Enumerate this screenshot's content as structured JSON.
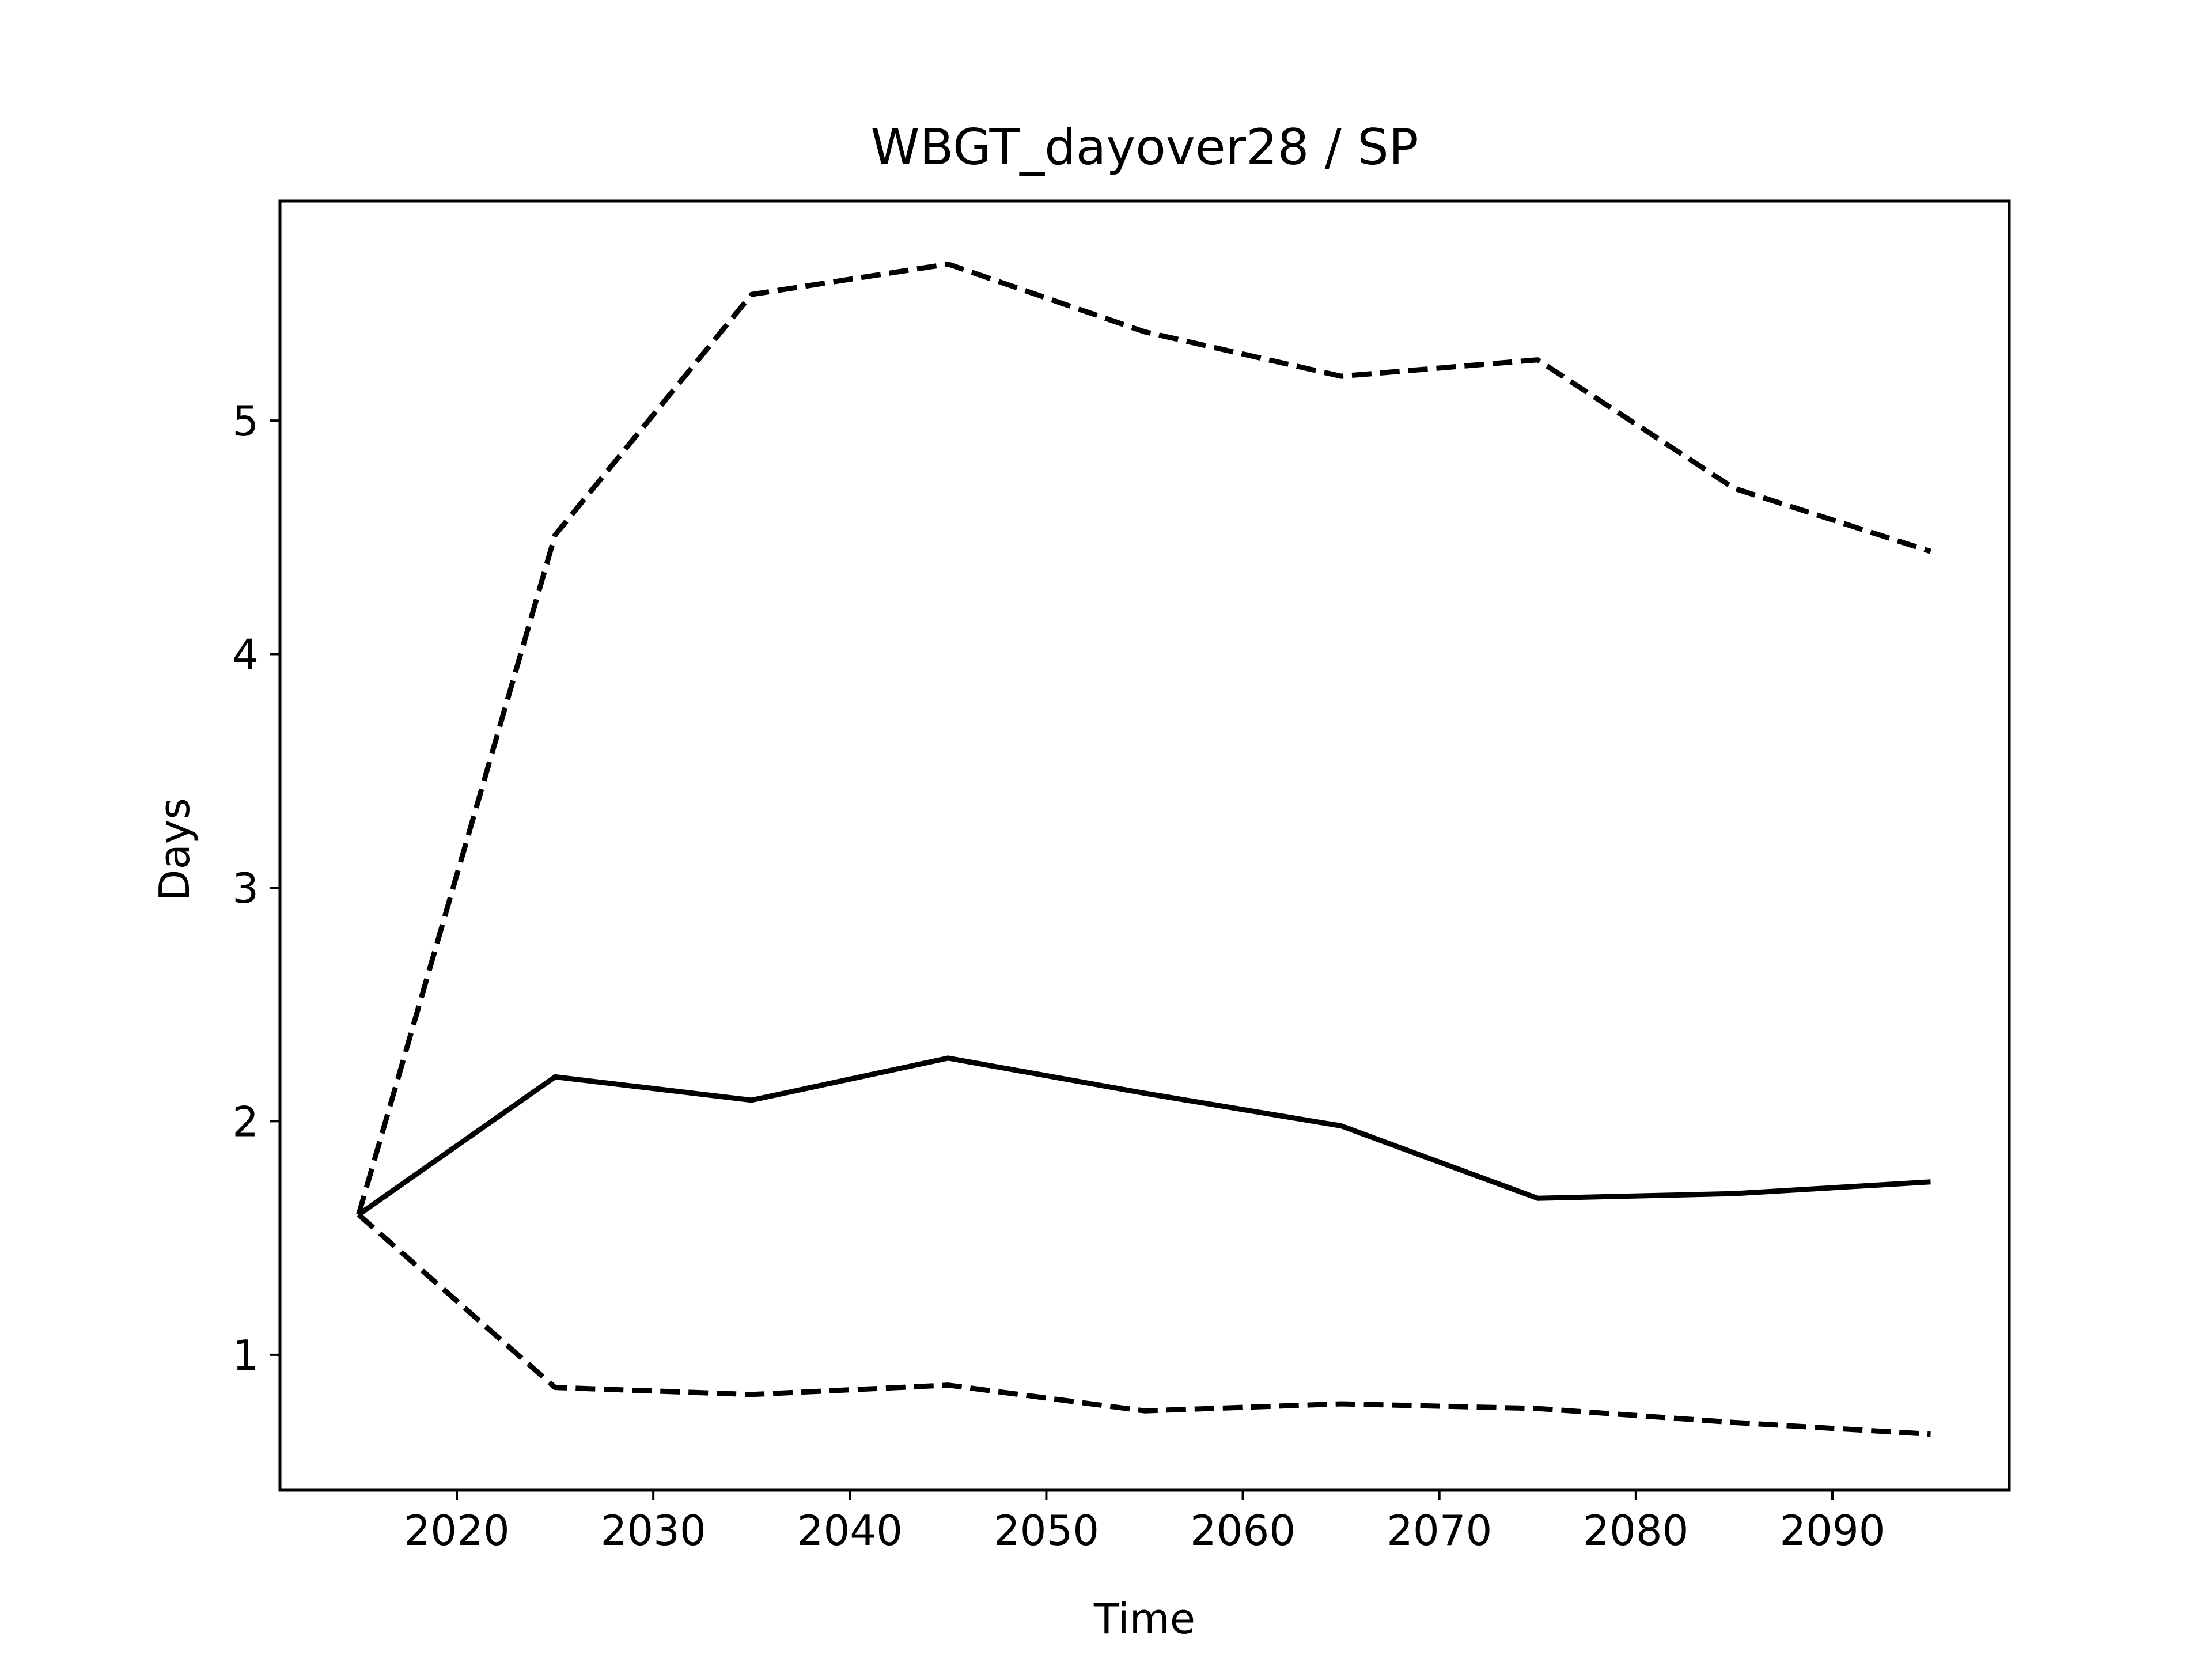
{
  "chart_data": {
    "type": "line",
    "title": "WBGT_dayover28 / SP",
    "xlabel": "Time",
    "ylabel": "Days",
    "xlim": [
      2011,
      2099
    ],
    "ylim": [
      0.42,
      5.94
    ],
    "xticks": [
      2020,
      2030,
      2040,
      2050,
      2060,
      2070,
      2080,
      2090
    ],
    "yticks": [
      1,
      2,
      3,
      4,
      5
    ],
    "grid": false,
    "legend": "none",
    "x": [
      2015,
      2025,
      2035,
      2045,
      2055,
      2065,
      2075,
      2085,
      2095
    ],
    "series": [
      {
        "style": "dashed",
        "color": "#000000",
        "values": [
          1.6,
          4.51,
          5.54,
          5.67,
          5.38,
          5.19,
          5.26,
          4.71,
          4.44
        ]
      },
      {
        "style": "solid",
        "color": "#000000",
        "values": [
          1.6,
          2.19,
          2.09,
          2.27,
          2.12,
          1.98,
          1.67,
          1.69,
          1.74
        ]
      },
      {
        "style": "dashed",
        "color": "#000000",
        "values": [
          1.6,
          0.86,
          0.83,
          0.87,
          0.76,
          0.79,
          0.77,
          0.71,
          0.66
        ]
      }
    ]
  }
}
